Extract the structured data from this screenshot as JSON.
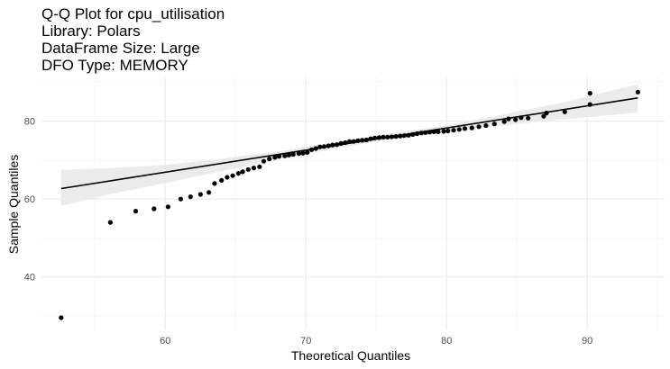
{
  "chart_data": {
    "type": "scatter",
    "title_lines": [
      "Q-Q Plot for cpu_utilisation",
      "Library: Polars",
      "DataFrame Size: Large",
      "DFO Type: MEMORY"
    ],
    "xlabel": "Theoretical Quantiles",
    "ylabel": "Sample Quantiles",
    "xlim": [
      51.2,
      95.5
    ],
    "ylim": [
      26.5,
      91.5
    ],
    "xticks": [
      60,
      70,
      80,
      90
    ],
    "yticks": [
      40,
      60,
      80
    ],
    "grid": true,
    "reference_line": {
      "x": [
        52.6,
        93.6
      ],
      "y": [
        62.7,
        86.0
      ]
    },
    "confidence_band": {
      "x": [
        52.6,
        56,
        60,
        64,
        68,
        72,
        74,
        76,
        78,
        80,
        84,
        88,
        93.6
      ],
      "lower": [
        58.2,
        61.2,
        64.1,
        67.2,
        70.2,
        72.9,
        74.1,
        75.3,
        76.3,
        77.2,
        78.9,
        80.4,
        82.2
      ],
      "upper": [
        67.5,
        67.9,
        68.8,
        70.4,
        72.2,
        74.6,
        75.7,
        76.8,
        77.9,
        79.0,
        81.7,
        84.6,
        89.5
      ]
    },
    "points": {
      "x": [
        52.6,
        56.1,
        57.9,
        59.2,
        60.2,
        61.1,
        61.8,
        62.5,
        63.1,
        63.5,
        64.0,
        64.4,
        64.8,
        65.2,
        65.5,
        65.9,
        66.3,
        66.7,
        67.0,
        67.4,
        67.8,
        68.1,
        68.5,
        68.8,
        69.1,
        69.5,
        69.8,
        70.1,
        70.4,
        70.7,
        71.0,
        71.3,
        71.6,
        71.9,
        72.2,
        72.5,
        72.8,
        73.1,
        73.4,
        73.7,
        74.0,
        74.3,
        74.6,
        74.9,
        75.2,
        75.5,
        75.8,
        76.1,
        76.4,
        76.7,
        77.0,
        77.3,
        77.6,
        77.9,
        78.2,
        78.5,
        78.8,
        79.1,
        79.4,
        79.8,
        80.1,
        80.5,
        80.9,
        81.3,
        81.8,
        82.3,
        82.8,
        83.4,
        84.1,
        84.9,
        85.8,
        86.9,
        88.4,
        90.2,
        93.6
      ],
      "y": [
        29.5,
        54.0,
        56.9,
        57.5,
        58.0,
        60.0,
        60.6,
        61.2,
        61.7,
        64.0,
        64.8,
        65.6,
        66.0,
        66.6,
        67.0,
        67.6,
        68.0,
        68.3,
        69.7,
        70.3,
        70.7,
        71.0,
        71.1,
        71.3,
        71.5,
        71.7,
        71.8,
        72.0,
        72.7,
        73.0,
        73.4,
        73.5,
        73.7,
        73.9,
        74.0,
        74.3,
        74.5,
        74.8,
        74.8,
        75.0,
        75.1,
        75.2,
        75.5,
        75.7,
        75.8,
        75.9,
        75.9,
        76.0,
        76.1,
        76.2,
        76.3,
        76.4,
        76.6,
        76.8,
        77.0,
        77.1,
        77.2,
        77.3,
        77.3,
        77.4,
        77.5,
        77.7,
        77.9,
        78.1,
        78.3,
        78.6,
        78.9,
        79.3,
        79.9,
        80.4,
        80.8,
        81.3,
        82.4,
        84.3,
        87.5
      ]
    }
  },
  "extra_points": {
    "x": [
      84.4,
      85.3,
      87.1,
      90.2
    ],
    "y": [
      80.6,
      80.9,
      82.1,
      87.2
    ]
  }
}
